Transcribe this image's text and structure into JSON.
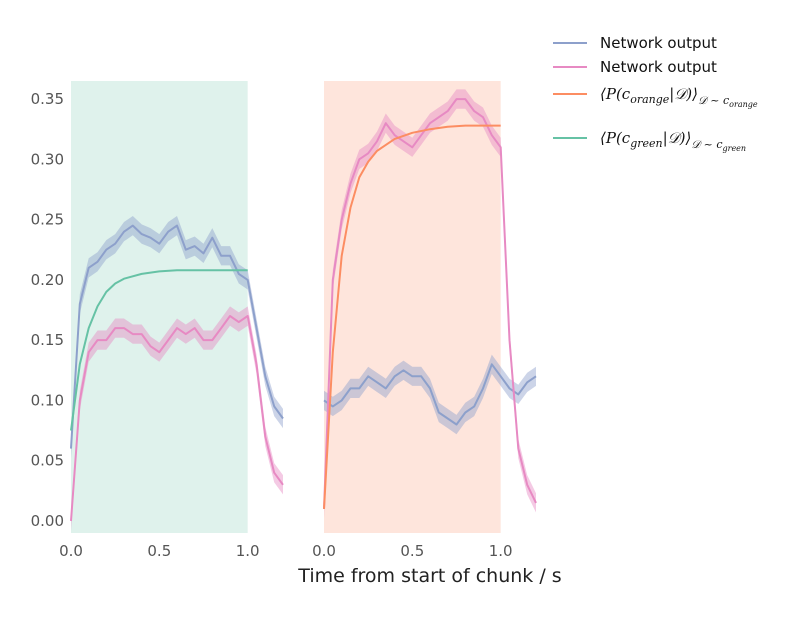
{
  "chart_data": {
    "type": "line",
    "xlabel": "Time from start of chunk / s",
    "ylabel": "",
    "ylim": [
      -0.01,
      0.365
    ],
    "yticks": [
      "0.00",
      "0.05",
      "0.10",
      "0.15",
      "0.20",
      "0.25",
      "0.30",
      "0.35"
    ],
    "ytick_values": [
      0.0,
      0.05,
      0.1,
      0.15,
      0.2,
      0.25,
      0.3,
      0.35
    ],
    "xticks": [
      "0.0",
      "0.5",
      "1.0"
    ],
    "xtick_values": [
      0.0,
      0.5,
      1.0
    ],
    "xlim": [
      0.0,
      1.2
    ],
    "grid": false,
    "legend_position": "top-right, outside plot",
    "colors": {
      "blue": "#8da0cb",
      "pink": "#e78ac3",
      "orange": "#fc8d62",
      "green": "#66c2a5",
      "green_shade": "#dff2ec",
      "orange_shade": "#fee5dc"
    },
    "legend": [
      {
        "label": "Network output",
        "color": "#8da0cb"
      },
      {
        "label": "Network output",
        "color": "#e78ac3"
      },
      {
        "label": "⟨P(c_orange|𝒟)⟩_𝒟~c_orange",
        "color": "#fc8d62",
        "math": {
          "pre": "⟨P(c",
          "sub": "orange",
          "mid": "|𝒟)⟩",
          "sub2": "𝒟 ~ c",
          "sub3": "orange"
        }
      },
      {
        "label": "⟨P(c_green|𝒟)⟩_𝒟~c_green",
        "color": "#66c2a5",
        "math": {
          "pre": "⟨P(c",
          "sub": "green",
          "mid": "|𝒟)⟩",
          "sub2": "𝒟 ~ c",
          "sub3": "green"
        }
      }
    ],
    "panels": [
      {
        "shade": {
          "x0": 0.0,
          "x1": 1.0,
          "color": "#dff2ec"
        },
        "series": [
          {
            "color": "#8da0cb",
            "x": [
              0.0,
              0.05,
              0.1,
              0.15,
              0.2,
              0.25,
              0.3,
              0.35,
              0.4,
              0.45,
              0.5,
              0.55,
              0.6,
              0.65,
              0.7,
              0.75,
              0.8,
              0.85,
              0.9,
              0.95,
              1.0,
              1.05,
              1.1,
              1.15,
              1.2
            ],
            "y": [
              0.06,
              0.18,
              0.21,
              0.215,
              0.225,
              0.23,
              0.24,
              0.245,
              0.238,
              0.235,
              0.23,
              0.24,
              0.245,
              0.225,
              0.228,
              0.222,
              0.235,
              0.22,
              0.22,
              0.205,
              0.2,
              0.16,
              0.12,
              0.095,
              0.085
            ]
          },
          {
            "color": "#e78ac3",
            "x": [
              0.0,
              0.05,
              0.1,
              0.15,
              0.2,
              0.25,
              0.3,
              0.35,
              0.4,
              0.45,
              0.5,
              0.55,
              0.6,
              0.65,
              0.7,
              0.75,
              0.8,
              0.85,
              0.9,
              0.95,
              1.0,
              1.05,
              1.1,
              1.15,
              1.2
            ],
            "y": [
              0.0,
              0.1,
              0.14,
              0.15,
              0.15,
              0.16,
              0.16,
              0.155,
              0.155,
              0.145,
              0.14,
              0.15,
              0.16,
              0.155,
              0.16,
              0.15,
              0.15,
              0.16,
              0.17,
              0.165,
              0.17,
              0.13,
              0.07,
              0.04,
              0.03
            ]
          },
          {
            "color": "#66c2a5",
            "x": [
              0.0,
              0.05,
              0.1,
              0.15,
              0.2,
              0.25,
              0.3,
              0.4,
              0.5,
              0.6,
              0.7,
              0.8,
              0.9,
              1.0
            ],
            "y": [
              0.075,
              0.13,
              0.16,
              0.178,
              0.19,
              0.197,
              0.201,
              0.205,
              0.207,
              0.208,
              0.208,
              0.208,
              0.208,
              0.208
            ]
          }
        ]
      },
      {
        "shade": {
          "x0": 0.0,
          "x1": 1.0,
          "color": "#fee5dc"
        },
        "series": [
          {
            "color": "#8da0cb",
            "x": [
              0.0,
              0.05,
              0.1,
              0.15,
              0.2,
              0.25,
              0.3,
              0.35,
              0.4,
              0.45,
              0.5,
              0.55,
              0.6,
              0.65,
              0.7,
              0.75,
              0.8,
              0.85,
              0.9,
              0.95,
              1.0,
              1.05,
              1.1,
              1.15,
              1.2
            ],
            "y": [
              0.1,
              0.095,
              0.1,
              0.11,
              0.11,
              0.12,
              0.115,
              0.11,
              0.12,
              0.125,
              0.12,
              0.12,
              0.11,
              0.09,
              0.085,
              0.08,
              0.09,
              0.095,
              0.11,
              0.13,
              0.12,
              0.11,
              0.105,
              0.115,
              0.12
            ]
          },
          {
            "color": "#e78ac3",
            "x": [
              0.0,
              0.05,
              0.1,
              0.15,
              0.2,
              0.25,
              0.3,
              0.35,
              0.4,
              0.45,
              0.5,
              0.55,
              0.6,
              0.65,
              0.7,
              0.75,
              0.8,
              0.85,
              0.9,
              0.95,
              1.0,
              1.05,
              1.1,
              1.15,
              1.2
            ],
            "y": [
              0.01,
              0.2,
              0.25,
              0.28,
              0.3,
              0.305,
              0.315,
              0.33,
              0.32,
              0.315,
              0.31,
              0.32,
              0.33,
              0.335,
              0.34,
              0.35,
              0.35,
              0.34,
              0.335,
              0.32,
              0.31,
              0.15,
              0.06,
              0.03,
              0.015
            ]
          },
          {
            "color": "#fc8d62",
            "x": [
              0.0,
              0.05,
              0.1,
              0.15,
              0.2,
              0.25,
              0.3,
              0.4,
              0.5,
              0.6,
              0.7,
              0.8,
              0.9,
              1.0
            ],
            "y": [
              0.01,
              0.14,
              0.22,
              0.26,
              0.285,
              0.298,
              0.307,
              0.317,
              0.322,
              0.325,
              0.327,
              0.328,
              0.328,
              0.328
            ]
          }
        ]
      }
    ]
  }
}
